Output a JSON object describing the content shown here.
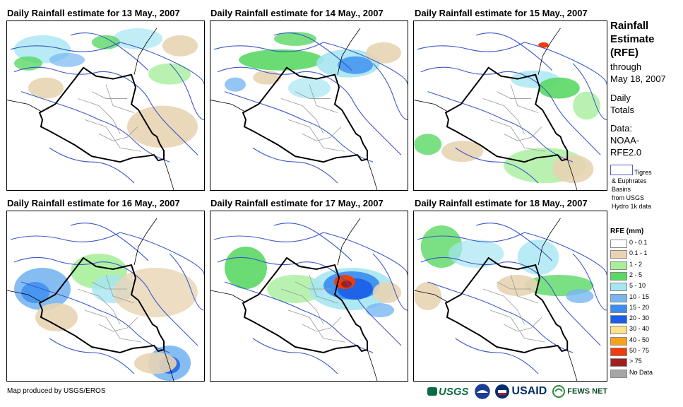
{
  "panels": [
    {
      "title": "Daily Rainfall estimate for 13 May., 2007"
    },
    {
      "title": "Daily Rainfall estimate for 14 May., 2007"
    },
    {
      "title": "Daily Rainfall estimate for 15 May., 2007"
    },
    {
      "title": "Daily Rainfall estimate for 16 May., 2007"
    },
    {
      "title": "Daily Rainfall estimate for 17 May., 2007"
    },
    {
      "title": "Daily Rainfall estimate for 18 May., 2007"
    }
  ],
  "side": {
    "title_line1": "Rainfall",
    "title_line2": "Estimate",
    "title_line3": "(RFE)",
    "through": "through",
    "date": "May 18, 2007",
    "daily": "Daily",
    "totals": "Totals",
    "data_label": "Data:",
    "data_src1": "NOAA-",
    "data_src2": "RFE2.0",
    "basin_label": "Tigres",
    "basin_line2": "& Euphrates",
    "basin_line3": "Basins",
    "basin_line4": "from USGS",
    "basin_line5": "Hydro 1k data"
  },
  "legend": {
    "title": "RFE (mm)",
    "items": [
      {
        "label": "0 - 0.1",
        "color": "#ffffff"
      },
      {
        "label": "0.1 - 1",
        "color": "#e8d4b4"
      },
      {
        "label": "1 - 2",
        "color": "#a8ef9c"
      },
      {
        "label": "2 - 5",
        "color": "#5ad864"
      },
      {
        "label": "5 - 10",
        "color": "#a6e6f2"
      },
      {
        "label": "10 - 15",
        "color": "#78b6f2"
      },
      {
        "label": "15 - 20",
        "color": "#3a8cf0"
      },
      {
        "label": "20 - 30",
        "color": "#1a5ee8"
      },
      {
        "label": "30 - 40",
        "color": "#fce28c"
      },
      {
        "label": "40 - 50",
        "color": "#f8a21a"
      },
      {
        "label": "50 - 75",
        "color": "#f03c0a"
      },
      {
        "label": "> 75",
        "color": "#a0201e"
      },
      {
        "label": "No Data",
        "color": "#a6a6a6"
      }
    ]
  },
  "footer": {
    "credit": "Map produced by USGS/EROS"
  },
  "logos": {
    "usgs": "USGS",
    "usaid": "USAID",
    "fews": "FEWS NET"
  }
}
